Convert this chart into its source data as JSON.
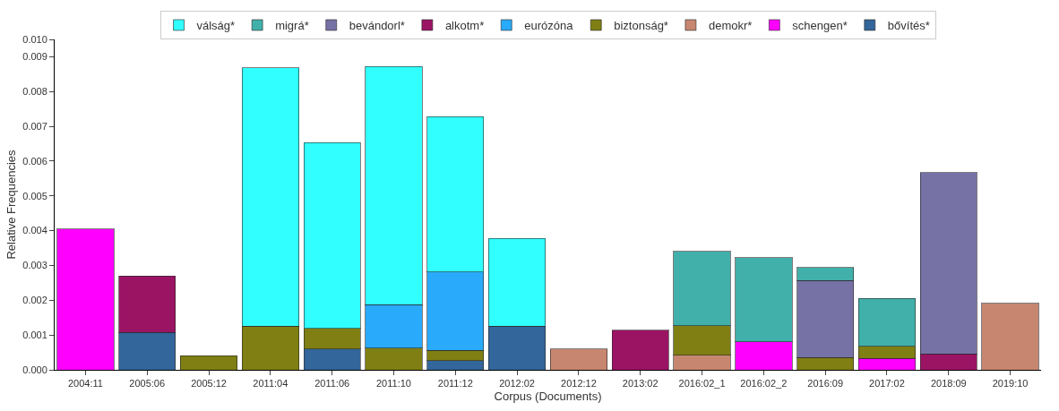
{
  "chart_data": {
    "type": "bar",
    "stacked": true,
    "xlabel": "Corpus (Documents)",
    "ylabel": "Relative Frequencies",
    "categories": [
      "2004:11",
      "2005:06",
      "2005:12",
      "2011:04",
      "2011:06",
      "2011:10",
      "2011:12",
      "2012:02",
      "2012:12",
      "2013:02",
      "2016:02_1",
      "2016:02_2",
      "2016:09",
      "2017:02",
      "2018:09",
      "2019:10"
    ],
    "series": [
      {
        "name": "bővítés*",
        "color": "#33669a",
        "values": [
          null,
          0.00108,
          null,
          null,
          0.0006,
          null,
          0.00027,
          0.00125,
          null,
          null,
          null,
          null,
          null,
          null,
          null,
          null
        ]
      },
      {
        "name": "schengen*",
        "color": "#fe00fe",
        "values": [
          0.00405,
          null,
          null,
          null,
          null,
          null,
          null,
          null,
          null,
          null,
          null,
          0.0008,
          null,
          0.00033,
          null,
          null
        ]
      },
      {
        "name": "demokr*",
        "color": "#c78670",
        "values": [
          null,
          null,
          null,
          null,
          null,
          null,
          null,
          null,
          0.0006,
          null,
          0.00042,
          null,
          null,
          null,
          null,
          0.00191
        ]
      },
      {
        "name": "biztonság*",
        "color": "#7f7f14",
        "values": [
          null,
          null,
          0.0004,
          0.00125,
          0.00059,
          0.00062,
          0.00029,
          null,
          null,
          null,
          0.00085,
          null,
          0.00036,
          0.00035,
          null,
          null
        ]
      },
      {
        "name": "eurózóna",
        "color": "#2aaafa",
        "values": [
          null,
          null,
          null,
          null,
          null,
          0.00125,
          0.00225,
          null,
          null,
          null,
          null,
          null,
          null,
          null,
          null,
          null
        ]
      },
      {
        "name": "alkotm*",
        "color": "#9b1464",
        "values": [
          null,
          0.00162,
          null,
          null,
          null,
          null,
          null,
          null,
          null,
          0.00114,
          null,
          null,
          null,
          null,
          0.00046,
          null
        ]
      },
      {
        "name": "bevándorl*",
        "color": "#7672a6",
        "values": [
          null,
          null,
          null,
          null,
          null,
          null,
          null,
          null,
          null,
          null,
          null,
          null,
          0.00221,
          null,
          0.00521,
          null
        ]
      },
      {
        "name": "migrá*",
        "color": "#42b0aa",
        "values": [
          null,
          null,
          null,
          null,
          null,
          null,
          null,
          null,
          null,
          null,
          0.00213,
          0.00242,
          0.00037,
          0.00137,
          null,
          null
        ]
      },
      {
        "name": "válság*",
        "color": "#31fefe",
        "values": [
          null,
          null,
          null,
          0.00743,
          0.00534,
          0.00685,
          0.00447,
          0.00253,
          null,
          null,
          null,
          null,
          null,
          null,
          null,
          null
        ]
      }
    ],
    "ylim": [
      0,
      0.0095
    ],
    "yticks": [
      "0.000",
      "0.001",
      "0.002",
      "0.003",
      "0.004",
      "0.005",
      "0.006",
      "0.007",
      "0.008",
      "0.009",
      {
        "value": 0.0095,
        "label": "0.010"
      }
    ],
    "legend": "top"
  }
}
